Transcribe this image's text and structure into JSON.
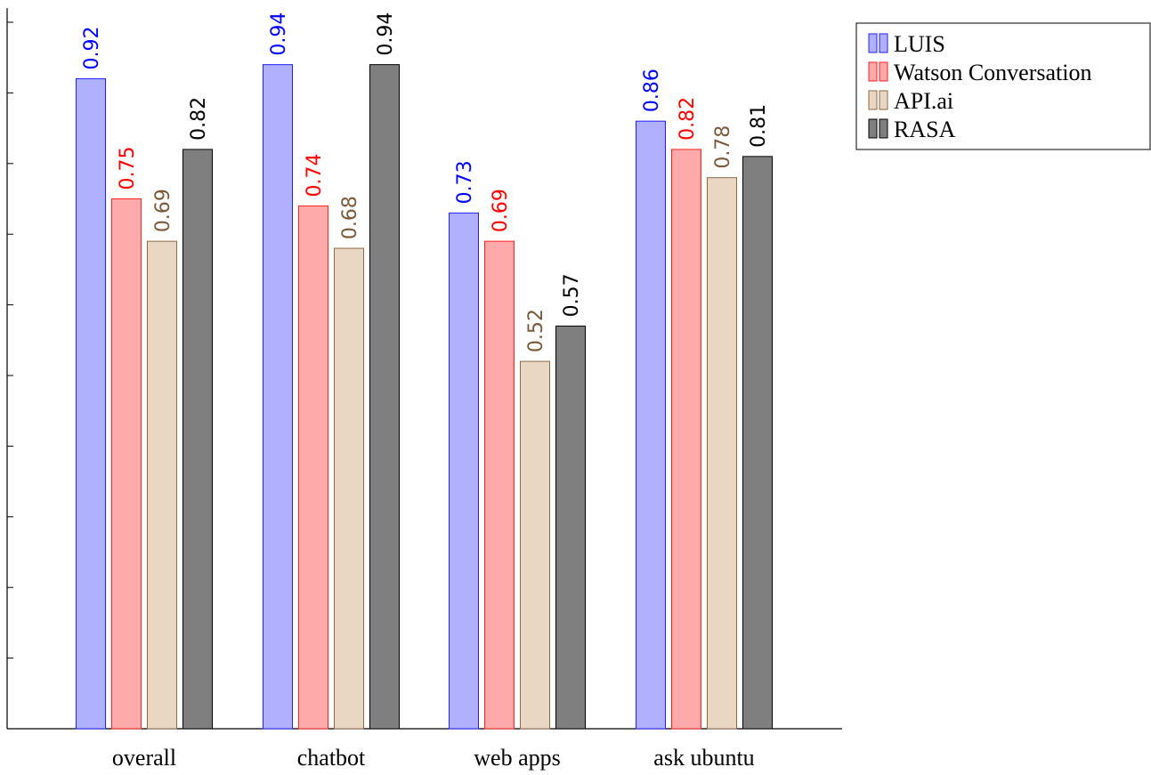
{
  "chart_data": {
    "type": "bar",
    "categories": [
      "overall",
      "chatbot",
      "web apps",
      "ask ubuntu"
    ],
    "series": [
      {
        "name": "LUIS",
        "values": [
          0.92,
          0.94,
          0.73,
          0.86
        ],
        "labels": [
          "0.92",
          "0.94",
          "0.73",
          "0.86"
        ],
        "fill": "#b0b0ff",
        "stroke": "#2020ff",
        "label_color": "#0000ff"
      },
      {
        "name": "Watson Conversation",
        "values": [
          0.75,
          0.74,
          0.69,
          0.82
        ],
        "labels": [
          "0.75",
          "0.74",
          "0.69",
          "0.82"
        ],
        "fill": "#ffaaaa",
        "stroke": "#ff2020",
        "label_color": "#ff0000"
      },
      {
        "name": "API.ai",
        "values": [
          0.69,
          0.68,
          0.52,
          0.78
        ],
        "labels": [
          "0.69",
          "0.68",
          "0.52",
          "0.78"
        ],
        "fill": "#ead7c3",
        "stroke": "#8b6a48",
        "label_color": "#7a5a3a"
      },
      {
        "name": "RASA",
        "values": [
          0.82,
          0.94,
          0.57,
          0.81
        ],
        "labels": [
          "0.82",
          "0.94",
          "0.57",
          "0.81"
        ],
        "fill": "#7f7f7f",
        "stroke": "#000000",
        "label_color": "#000000"
      }
    ],
    "ylim": [
      0,
      1.02
    ],
    "y_ticks": [
      0,
      0.1,
      0.2,
      0.3,
      0.4,
      0.5,
      0.6,
      0.7,
      0.8,
      0.9,
      1.0
    ],
    "y_tick_labels_visible": false,
    "grid": false,
    "legend_position": "top-right-outside"
  }
}
